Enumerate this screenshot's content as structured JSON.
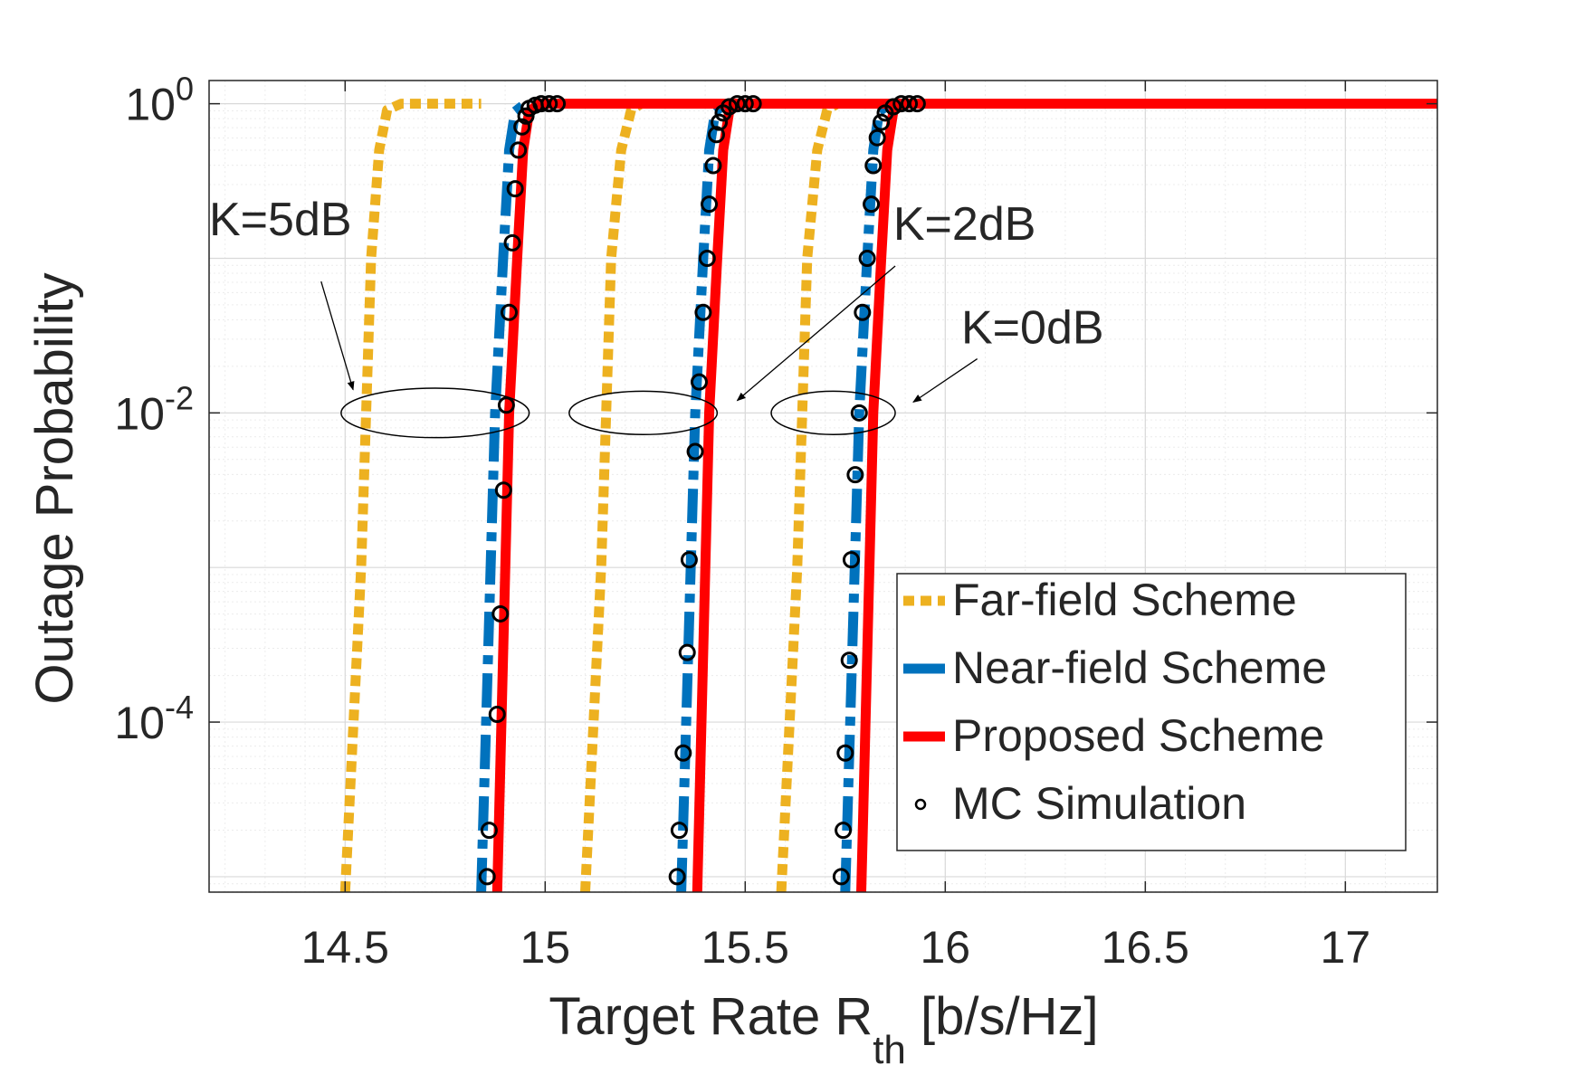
{
  "chart_data": {
    "type": "line",
    "title": "",
    "xlabel": "Target Rate R",
    "xlabel_sub": "th",
    "xlabel_unit": " [b/s/Hz]",
    "ylabel": "Outage Probability",
    "xlim": [
      14.16,
      17.23
    ],
    "ylim_log10": [
      -5.1,
      0.15
    ],
    "yscale": "log",
    "grid": true,
    "x_ticks": [
      14.5,
      15,
      15.5,
      16,
      16.5,
      17
    ],
    "x_tick_labels": [
      "14.5",
      "15",
      "15.5",
      "16",
      "16.5",
      "17"
    ],
    "y_ticks": [
      {
        "base": "10",
        "exp": "0",
        "log10": 0
      },
      {
        "base": "10",
        "exp": "-2",
        "log10": -2
      },
      {
        "base": "10",
        "exp": "-4",
        "log10": -4
      }
    ],
    "colors": {
      "far": "#EDB120",
      "near": "#0072BD",
      "proposed": "#FF0000",
      "mc": "#000000"
    },
    "series": [
      {
        "name": "Far-field Scheme",
        "key": "far",
        "style": "dotted",
        "groups": [
          [
            [
              14.5,
              -5.1
            ],
            [
              14.54,
              -3.0
            ],
            [
              14.565,
              -1.0
            ],
            [
              14.585,
              -0.3
            ],
            [
              14.605,
              -0.04
            ],
            [
              14.64,
              0
            ],
            [
              14.84,
              0
            ]
          ],
          [
            [
              15.1,
              -5.1
            ],
            [
              15.14,
              -3.0
            ],
            [
              15.165,
              -1.0
            ],
            [
              15.19,
              -0.3
            ],
            [
              15.215,
              -0.04
            ],
            [
              15.24,
              0
            ]
          ],
          [
            [
              15.59,
              -5.1
            ],
            [
              15.63,
              -3.0
            ],
            [
              15.655,
              -1.0
            ],
            [
              15.68,
              -0.3
            ],
            [
              15.705,
              -0.04
            ],
            [
              15.73,
              0
            ]
          ]
        ]
      },
      {
        "name": "Near-field Scheme",
        "key": "near",
        "style": "dashdot",
        "groups": [
          [
            [
              14.84,
              -5.1
            ],
            [
              14.875,
              -2.0
            ],
            [
              14.895,
              -1.0
            ],
            [
              14.91,
              -0.3
            ],
            [
              14.925,
              -0.05
            ],
            [
              14.95,
              0
            ]
          ],
          [
            [
              15.34,
              -5.1
            ],
            [
              15.375,
              -2.0
            ],
            [
              15.395,
              -1.0
            ],
            [
              15.41,
              -0.3
            ],
            [
              15.425,
              -0.05
            ],
            [
              15.45,
              0
            ]
          ],
          [
            [
              15.75,
              -5.1
            ],
            [
              15.785,
              -2.0
            ],
            [
              15.805,
              -1.0
            ],
            [
              15.82,
              -0.3
            ],
            [
              15.835,
              -0.05
            ],
            [
              15.86,
              0
            ]
          ]
        ]
      },
      {
        "name": "Proposed Scheme",
        "key": "proposed",
        "style": "solid",
        "groups": [
          [
            [
              14.88,
              -5.1
            ],
            [
              14.91,
              -2.0
            ],
            [
              14.93,
              -1.0
            ],
            [
              14.945,
              -0.3
            ],
            [
              14.96,
              -0.05
            ],
            [
              14.985,
              0
            ],
            [
              17.23,
              0
            ]
          ],
          [
            [
              15.38,
              -5.1
            ],
            [
              15.41,
              -2.0
            ],
            [
              15.43,
              -1.0
            ],
            [
              15.445,
              -0.3
            ],
            [
              15.46,
              -0.05
            ],
            [
              15.485,
              0
            ]
          ],
          [
            [
              15.79,
              -5.1
            ],
            [
              15.82,
              -2.0
            ],
            [
              15.84,
              -1.0
            ],
            [
              15.855,
              -0.3
            ],
            [
              15.87,
              -0.05
            ],
            [
              15.895,
              0
            ]
          ]
        ]
      },
      {
        "name": "MC Simulation",
        "key": "mc",
        "style": "markers",
        "points": [
          [
            14.855,
            -5.0
          ],
          [
            14.86,
            -4.7
          ],
          [
            14.88,
            -3.95
          ],
          [
            14.888,
            -3.3
          ],
          [
            14.896,
            -2.5
          ],
          [
            14.903,
            -1.95
          ],
          [
            14.91,
            -1.35
          ],
          [
            14.918,
            -0.9
          ],
          [
            14.925,
            -0.55
          ],
          [
            14.933,
            -0.3
          ],
          [
            14.942,
            -0.15
          ],
          [
            14.952,
            -0.08
          ],
          [
            14.96,
            -0.03
          ],
          [
            14.975,
            -0.01
          ],
          [
            14.99,
            0
          ],
          [
            15.01,
            0
          ],
          [
            15.03,
            0
          ],
          [
            15.33,
            -5.0
          ],
          [
            15.335,
            -4.7
          ],
          [
            15.345,
            -4.2
          ],
          [
            15.355,
            -3.55
          ],
          [
            15.36,
            -2.95
          ],
          [
            15.375,
            -2.25
          ],
          [
            15.385,
            -1.8
          ],
          [
            15.395,
            -1.35
          ],
          [
            15.405,
            -1.0
          ],
          [
            15.41,
            -0.65
          ],
          [
            15.42,
            -0.4
          ],
          [
            15.428,
            -0.2
          ],
          [
            15.435,
            -0.12
          ],
          [
            15.445,
            -0.06
          ],
          [
            15.46,
            -0.02
          ],
          [
            15.48,
            0
          ],
          [
            15.5,
            0
          ],
          [
            15.52,
            0
          ],
          [
            15.74,
            -5.0
          ],
          [
            15.745,
            -4.7
          ],
          [
            15.75,
            -4.2
          ],
          [
            15.76,
            -3.6
          ],
          [
            15.765,
            -2.95
          ],
          [
            15.775,
            -2.4
          ],
          [
            15.785,
            -2.0
          ],
          [
            15.793,
            -1.35
          ],
          [
            15.805,
            -1.0
          ],
          [
            15.815,
            -0.65
          ],
          [
            15.82,
            -0.4
          ],
          [
            15.83,
            -0.22
          ],
          [
            15.84,
            -0.12
          ],
          [
            15.85,
            -0.06
          ],
          [
            15.87,
            -0.02
          ],
          [
            15.89,
            0
          ],
          [
            15.91,
            0
          ],
          [
            15.93,
            0
          ]
        ]
      }
    ],
    "annotations": [
      {
        "text": "K=5dB",
        "ellipse": {
          "cx": 14.725,
          "cy": -2.0,
          "rx": 0.235,
          "ry": 0.16
        },
        "label_at": [
          14.16,
          -0.85
        ],
        "arrow_from": [
          14.44,
          -1.15
        ],
        "arrow_to": [
          14.52,
          -1.85
        ]
      },
      {
        "text": "K=2dB",
        "ellipse": {
          "cx": 15.245,
          "cy": -2.0,
          "rx": 0.185,
          "ry": 0.14
        },
        "label_at": [
          15.87,
          -0.88
        ],
        "arrow_from": [
          15.875,
          -1.05
        ],
        "arrow_to": [
          15.48,
          -1.92
        ]
      },
      {
        "text": "K=0dB",
        "ellipse": {
          "cx": 15.72,
          "cy": -2.0,
          "rx": 0.155,
          "ry": 0.14
        },
        "label_at": [
          16.04,
          -1.55
        ],
        "arrow_from": [
          16.08,
          -1.65
        ],
        "arrow_to": [
          15.92,
          -1.93
        ]
      }
    ],
    "legend_position": "bottom-right"
  }
}
